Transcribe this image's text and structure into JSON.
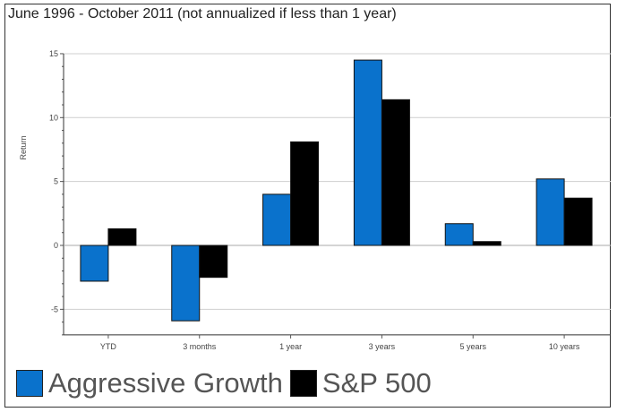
{
  "chart_data": {
    "type": "bar",
    "title": "June 1996 - October 2011 (not annualized if less than 1 year)",
    "ylabel": "Return",
    "xlabel": "",
    "categories": [
      "YTD",
      "3 months",
      "1 year",
      "3 years",
      "5 years",
      "10 years"
    ],
    "series": [
      {
        "name": "Aggressive Growth",
        "color": "#0a72cc",
        "values": [
          -2.8,
          -5.9,
          4.0,
          14.5,
          1.7,
          5.2
        ]
      },
      {
        "name": "S&P 500",
        "color": "#000000",
        "values": [
          1.3,
          -2.5,
          8.1,
          11.4,
          0.3,
          3.7
        ]
      }
    ],
    "ylim": [
      -7,
      15
    ],
    "yticks": [
      "15",
      "10",
      "5",
      "0",
      "-5"
    ],
    "grid": true,
    "legend_position": "bottom-left"
  }
}
